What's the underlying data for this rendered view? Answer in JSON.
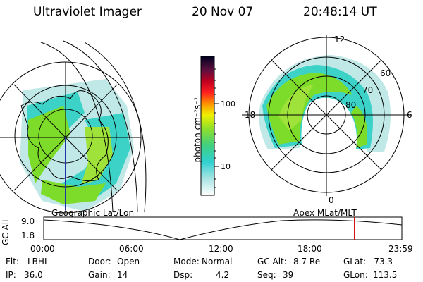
{
  "header": {
    "instrument": "Ultraviolet Imager",
    "date": "20 Nov 07",
    "time": "20:48:14 UT"
  },
  "left_panel": {
    "label": "Geographic Lat/Lon"
  },
  "right_panel": {
    "label": "Apex MLat/MLT",
    "mlat_labels": [
      "60",
      "70",
      "80"
    ],
    "mlt_labels": {
      "top": "12",
      "left": "18",
      "right": "6",
      "bottom": "0"
    }
  },
  "colorbar": {
    "unit_label": "photon cm⁻²s⁻¹",
    "ticks": [
      "100",
      "10"
    ],
    "scale": "log"
  },
  "gc_alt_strip": {
    "label": "GC Alt",
    "y_ticks": [
      "9.0",
      "1.8"
    ],
    "x_ticks": [
      "00:00",
      "06:00",
      "12:00",
      "18:00",
      "23:59"
    ],
    "current_time_marker_hours": 20.8
  },
  "info": {
    "rows": [
      [
        {
          "key": "Flt:",
          "value": "LBHL"
        },
        {
          "key": "Door:",
          "value": "Open"
        },
        {
          "key": "Mode:",
          "value": "Normal"
        },
        {
          "key": "GC Alt:",
          "value": "8.7 Re"
        },
        {
          "key": "GLat:",
          "value": "-73.3"
        }
      ],
      [
        {
          "key": "IP:",
          "value": "36.0"
        },
        {
          "key": "Gain:",
          "value": "14"
        },
        {
          "key": "Dsp:",
          "value": "4.2"
        },
        {
          "key": "Seq:",
          "value": "39"
        },
        {
          "key": "GLon:",
          "value": "113.5"
        }
      ]
    ]
  },
  "colors": {
    "marker": "#cc0000",
    "aurora_green": "#7ddc2a",
    "aurora_cyan": "#3cd2c8",
    "aurora_light": "#bfe8e6"
  }
}
